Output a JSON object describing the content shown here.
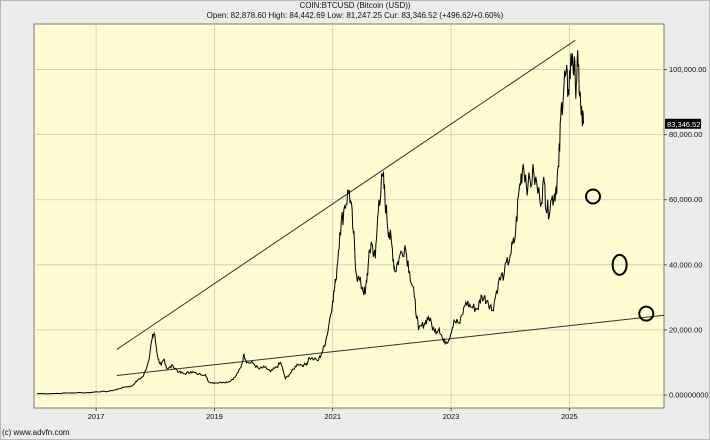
{
  "header": {
    "title": "COIN:BTCUSD (Bitcoin (USD))",
    "ohlc": "Open: 82,878.60 High: 84,442.69 Low: 81,247.25 Cur: 83,346.52 (+496.62/+0.60%)"
  },
  "footer": {
    "copyright": "(c) www.advfn.com"
  },
  "colors": {
    "plot_background": "#fefcd0",
    "grid": "#c8c8c8",
    "price_line": "#000000",
    "current_price_tag": "#000000"
  },
  "chart_data": {
    "type": "line",
    "title": "COIN:BTCUSD (Bitcoin (USD))",
    "xlabel": "",
    "ylabel": "",
    "x_ticks": [
      "2017",
      "2019",
      "2021",
      "2023",
      "2025"
    ],
    "y_ticks": [
      "0.00000000",
      "20,000.00",
      "40,000.00",
      "60,000.00",
      "80,000.00",
      "100,000.00"
    ],
    "ylim": [
      -4000,
      114000
    ],
    "xlim": [
      2015.95,
      2026.6
    ],
    "grid": true,
    "current_value_label": "83,346.52",
    "current_value": 83346.52,
    "series": [
      {
        "values": [
          [
            2016.0,
            430
          ],
          [
            2016.3,
            450
          ],
          [
            2016.6,
            650
          ],
          [
            2016.9,
            750
          ],
          [
            2017.0,
            1000
          ],
          [
            2017.2,
            1100
          ],
          [
            2017.35,
            1700
          ],
          [
            2017.5,
            2500
          ],
          [
            2017.6,
            2700
          ],
          [
            2017.7,
            4500
          ],
          [
            2017.8,
            5800
          ],
          [
            2017.88,
            10000
          ],
          [
            2017.95,
            17500
          ],
          [
            2017.98,
            19000
          ],
          [
            2018.05,
            11000
          ],
          [
            2018.1,
            9000
          ],
          [
            2018.15,
            11000
          ],
          [
            2018.2,
            8000
          ],
          [
            2018.3,
            9000
          ],
          [
            2018.4,
            7000
          ],
          [
            2018.5,
            6500
          ],
          [
            2018.6,
            7200
          ],
          [
            2018.7,
            6500
          ],
          [
            2018.85,
            6300
          ],
          [
            2018.9,
            4000
          ],
          [
            2019.0,
            3700
          ],
          [
            2019.15,
            3900
          ],
          [
            2019.25,
            4100
          ],
          [
            2019.35,
            5500
          ],
          [
            2019.45,
            8500
          ],
          [
            2019.5,
            12500
          ],
          [
            2019.55,
            10000
          ],
          [
            2019.65,
            9800
          ],
          [
            2019.75,
            8000
          ],
          [
            2019.85,
            8500
          ],
          [
            2019.95,
            7200
          ],
          [
            2020.05,
            8500
          ],
          [
            2020.12,
            10000
          ],
          [
            2020.2,
            5000
          ],
          [
            2020.3,
            7000
          ],
          [
            2020.4,
            9500
          ],
          [
            2020.55,
            9200
          ],
          [
            2020.6,
            11500
          ],
          [
            2020.75,
            10500
          ],
          [
            2020.83,
            13500
          ],
          [
            2020.9,
            18000
          ],
          [
            2021.0,
            29000
          ],
          [
            2021.05,
            35000
          ],
          [
            2021.12,
            50000
          ],
          [
            2021.2,
            58000
          ],
          [
            2021.28,
            63000
          ],
          [
            2021.35,
            50000
          ],
          [
            2021.4,
            37000
          ],
          [
            2021.5,
            33000
          ],
          [
            2021.55,
            31000
          ],
          [
            2021.6,
            40000
          ],
          [
            2021.65,
            47000
          ],
          [
            2021.72,
            42000
          ],
          [
            2021.78,
            60000
          ],
          [
            2021.85,
            67000
          ],
          [
            2021.9,
            57000
          ],
          [
            2021.95,
            50000
          ],
          [
            2022.0,
            46000
          ],
          [
            2022.05,
            38000
          ],
          [
            2022.12,
            42000
          ],
          [
            2022.22,
            46000
          ],
          [
            2022.3,
            38000
          ],
          [
            2022.38,
            30000
          ],
          [
            2022.45,
            20000
          ],
          [
            2022.55,
            22000
          ],
          [
            2022.62,
            24000
          ],
          [
            2022.72,
            19500
          ],
          [
            2022.8,
            20500
          ],
          [
            2022.87,
            16500
          ],
          [
            2022.96,
            16800
          ],
          [
            2023.05,
            23000
          ],
          [
            2023.15,
            22000
          ],
          [
            2023.25,
            28500
          ],
          [
            2023.35,
            27000
          ],
          [
            2023.45,
            26500
          ],
          [
            2023.52,
            30500
          ],
          [
            2023.62,
            29000
          ],
          [
            2023.7,
            26000
          ],
          [
            2023.8,
            34500
          ],
          [
            2023.9,
            37500
          ],
          [
            2024.0,
            43000
          ],
          [
            2024.08,
            48000
          ],
          [
            2024.15,
            63000
          ],
          [
            2024.22,
            71000
          ],
          [
            2024.3,
            64000
          ],
          [
            2024.4,
            68000
          ],
          [
            2024.5,
            60000
          ],
          [
            2024.58,
            65000
          ],
          [
            2024.62,
            56000
          ],
          [
            2024.7,
            60000
          ],
          [
            2024.77,
            63000
          ],
          [
            2024.82,
            70000
          ],
          [
            2024.87,
            90000
          ],
          [
            2024.93,
            98000
          ],
          [
            2024.98,
            94000
          ],
          [
            2025.05,
            105000
          ],
          [
            2025.1,
            96000
          ],
          [
            2025.15,
            101000
          ],
          [
            2025.2,
            86000
          ],
          [
            2025.24,
            83346.52
          ]
        ]
      }
    ],
    "trendlines": [
      {
        "from": [
          2017.35,
          14000
        ],
        "to": [
          2025.1,
          109000
        ]
      },
      {
        "from": [
          2017.35,
          6000
        ],
        "to": [
          2026.6,
          24500
        ]
      }
    ],
    "annotations": [
      {
        "type": "circle",
        "at": [
          2025.4,
          61000
        ]
      },
      {
        "type": "circle",
        "at": [
          2025.85,
          40000
        ]
      },
      {
        "type": "circle",
        "at": [
          2026.3,
          25000
        ]
      }
    ]
  }
}
